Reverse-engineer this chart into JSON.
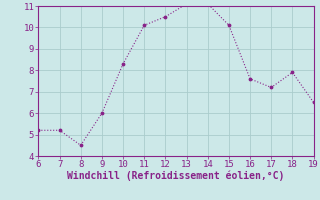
{
  "x": [
    6,
    7,
    8,
    9,
    10,
    11,
    12,
    13,
    14,
    15,
    16,
    17,
    18,
    19
  ],
  "y": [
    5.2,
    5.2,
    4.5,
    6.0,
    8.3,
    10.1,
    10.5,
    11.1,
    11.1,
    10.1,
    7.6,
    7.2,
    7.9,
    6.5
  ],
  "line_color": "#882288",
  "marker": "s",
  "xlabel": "Windchill (Refroidissement éolien,°C)",
  "xlim": [
    6,
    19
  ],
  "ylim": [
    4,
    11
  ],
  "xticks": [
    6,
    7,
    8,
    9,
    10,
    11,
    12,
    13,
    14,
    15,
    16,
    17,
    18,
    19
  ],
  "yticks": [
    4,
    5,
    6,
    7,
    8,
    9,
    10,
    11
  ],
  "bg_color": "#cce8e8",
  "grid_color": "#aacccc",
  "text_color": "#882288",
  "spine_color": "#882288",
  "font_size": 6.5,
  "xlabel_size": 7.0
}
